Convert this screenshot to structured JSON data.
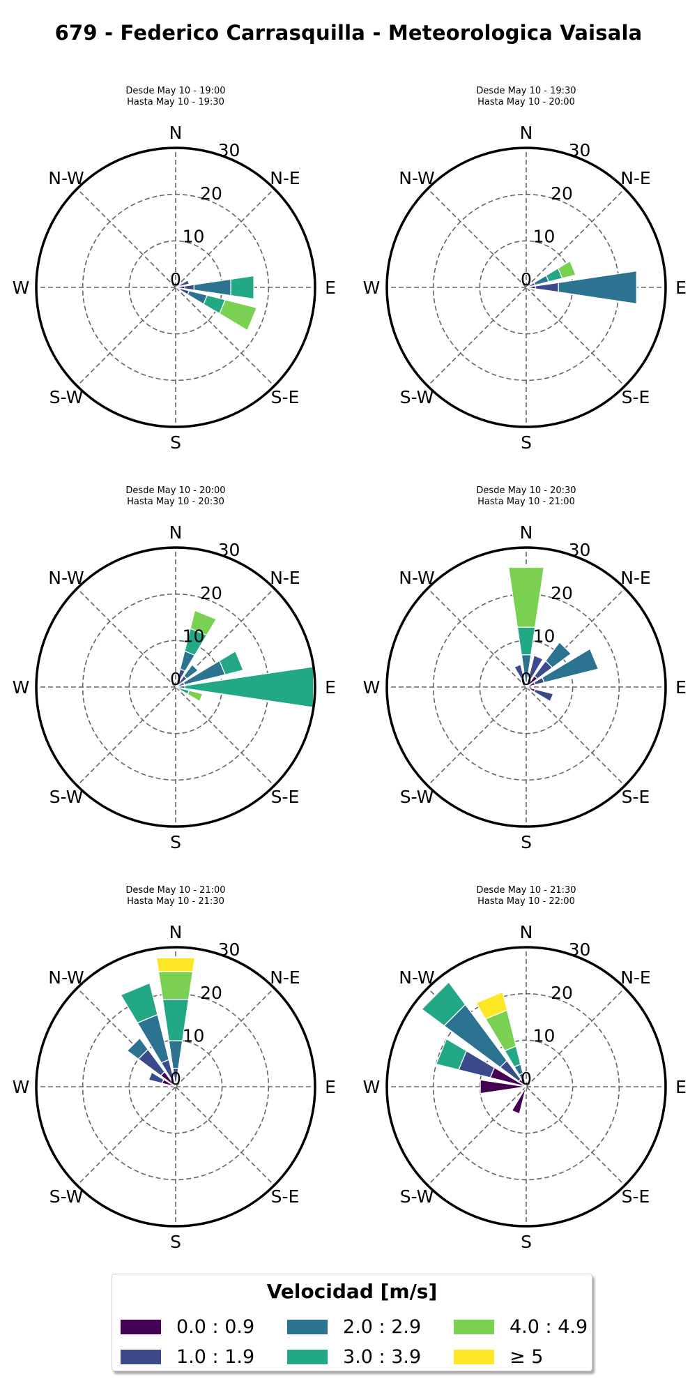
{
  "title": "679 - Federico Carrasquilla - Meteorologica Vaisala",
  "legend": {
    "title": "Velocidad [m/s]",
    "items": [
      {
        "label": "0.0 : 0.9",
        "color": "#440154"
      },
      {
        "label": "1.0 : 1.9",
        "color": "#3b4a8a"
      },
      {
        "label": "2.0 : 2.9",
        "color": "#2b7390"
      },
      {
        "label": "3.0 : 3.9",
        "color": "#22a884"
      },
      {
        "label": "4.0 : 4.9",
        "color": "#7ad151"
      },
      {
        "label": "≥ 5",
        "color": "#fde725"
      }
    ]
  },
  "chart_data": [
    {
      "type": "windrose",
      "title_line1": "Desde May 10 - 19:00",
      "title_line2": "Hasta May 10 - 19:30",
      "direction_labels": [
        "N",
        "N-E",
        "E",
        "S-E",
        "S",
        "S-W",
        "W",
        "N-W"
      ],
      "radial_ticks": [
        0,
        10,
        20,
        30
      ],
      "rmax": 30,
      "bars": [
        {
          "direction_deg": 67.5,
          "stacks": [
            1,
            2,
            0,
            0,
            0,
            0
          ]
        },
        {
          "direction_deg": 90,
          "stacks": [
            2,
            2,
            8,
            5,
            0,
            0
          ]
        },
        {
          "direction_deg": 112.5,
          "stacks": [
            1,
            2,
            4,
            4,
            7,
            0
          ]
        }
      ]
    },
    {
      "type": "windrose",
      "title_line1": "Desde May 10 - 19:30",
      "title_line2": "Hasta May 10 - 20:00",
      "direction_labels": [
        "N",
        "N-E",
        "E",
        "S-E",
        "S",
        "S-W",
        "W",
        "N-W"
      ],
      "radial_ticks": [
        0,
        10,
        20,
        30
      ],
      "rmax": 30,
      "bars": [
        {
          "direction_deg": 67.5,
          "stacks": [
            0,
            2,
            3,
            3,
            3,
            0
          ]
        },
        {
          "direction_deg": 90,
          "stacks": [
            2,
            5,
            17,
            0,
            0,
            0
          ]
        },
        {
          "direction_deg": 112.5,
          "stacks": [
            0,
            0,
            0,
            0,
            2,
            0
          ]
        }
      ]
    },
    {
      "type": "windrose",
      "title_line1": "Desde May 10 - 20:00",
      "title_line2": "Hasta May 10 - 20:30",
      "direction_labels": [
        "N",
        "N-E",
        "E",
        "S-E",
        "S",
        "S-W",
        "W",
        "N-W"
      ],
      "radial_ticks": [
        0,
        10,
        20,
        30
      ],
      "rmax": 30,
      "bars": [
        {
          "direction_deg": 22.5,
          "stacks": [
            1,
            3,
            4,
            5,
            4,
            0
          ]
        },
        {
          "direction_deg": 45,
          "stacks": [
            0,
            3,
            3,
            0,
            0,
            0
          ]
        },
        {
          "direction_deg": 67.5,
          "stacks": [
            0,
            2,
            9,
            4,
            0,
            0
          ]
        },
        {
          "direction_deg": 90,
          "stacks": [
            0,
            0,
            2,
            28,
            0,
            0
          ]
        },
        {
          "direction_deg": 112.5,
          "stacks": [
            0,
            0,
            0,
            3,
            3,
            0
          ]
        }
      ]
    },
    {
      "type": "windrose",
      "title_line1": "Desde May 10 - 20:30",
      "title_line2": "Hasta May 10 - 21:00",
      "direction_labels": [
        "N",
        "N-E",
        "E",
        "S-E",
        "S",
        "S-W",
        "W",
        "N-W"
      ],
      "radial_ticks": [
        0,
        10,
        20,
        30
      ],
      "rmax": 30,
      "bars": [
        {
          "direction_deg": 0,
          "stacks": [
            0,
            1,
            6,
            6,
            13,
            0
          ]
        },
        {
          "direction_deg": 22.5,
          "stacks": [
            2,
            5,
            0,
            0,
            0,
            0
          ]
        },
        {
          "direction_deg": 45,
          "stacks": [
            3,
            4,
            5,
            0,
            0,
            0
          ]
        },
        {
          "direction_deg": 67.5,
          "stacks": [
            2,
            2,
            12,
            0,
            0,
            0
          ]
        },
        {
          "direction_deg": 112.5,
          "stacks": [
            2,
            4,
            0,
            0,
            0,
            0
          ]
        },
        {
          "direction_deg": 337.5,
          "stacks": [
            2,
            3,
            0,
            0,
            0,
            0
          ]
        }
      ]
    },
    {
      "type": "windrose",
      "title_line1": "Desde May 10 - 21:00",
      "title_line2": "Hasta May 10 - 21:30",
      "direction_labels": [
        "N",
        "N-E",
        "E",
        "S-E",
        "S",
        "S-W",
        "W",
        "N-W"
      ],
      "radial_ticks": [
        0,
        10,
        20,
        30
      ],
      "rmax": 30,
      "bars": [
        {
          "direction_deg": 0,
          "stacks": [
            1,
            3,
            6,
            9,
            6,
            3
          ]
        },
        {
          "direction_deg": 292.5,
          "stacks": [
            3,
            3,
            0,
            0,
            0,
            0
          ]
        },
        {
          "direction_deg": 315,
          "stacks": [
            4,
            6,
            3,
            0,
            0,
            0
          ]
        },
        {
          "direction_deg": 337.5,
          "stacks": [
            1,
            5,
            10,
            7,
            0,
            0
          ]
        }
      ]
    },
    {
      "type": "windrose",
      "title_line1": "Desde May 10 - 21:30",
      "title_line2": "Hasta May 10 - 22:00",
      "direction_labels": [
        "N",
        "N-E",
        "E",
        "S-E",
        "S",
        "S-W",
        "W",
        "N-W"
      ],
      "radial_ticks": [
        0,
        10,
        20,
        30
      ],
      "rmax": 30,
      "bars": [
        {
          "direction_deg": 337.5,
          "stacks": [
            1,
            2,
            2,
            4,
            8,
            4
          ]
        },
        {
          "direction_deg": 315,
          "stacks": [
            2,
            5,
            15,
            6,
            0,
            0
          ]
        },
        {
          "direction_deg": 292.5,
          "stacks": [
            8,
            7,
            0,
            5,
            0,
            0
          ]
        },
        {
          "direction_deg": 270,
          "stacks": [
            10,
            0,
            0,
            0,
            0,
            0
          ]
        },
        {
          "direction_deg": 202.5,
          "stacks": [
            6,
            0,
            0,
            0,
            0,
            0
          ]
        }
      ]
    }
  ]
}
